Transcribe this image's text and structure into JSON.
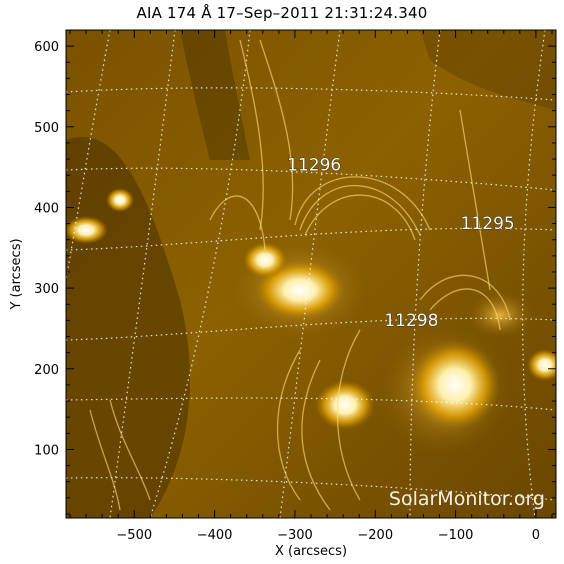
{
  "title": "AIA 174 Å 17–Sep–2011 21:31:24.340",
  "xlabel": "X (arcsecs)",
  "ylabel": "Y (arcsecs)",
  "watermark": "SolarMonitor.org",
  "colors": {
    "background": "#ffffff",
    "image_dark": "#2a1a00",
    "image_mid": "#a87400",
    "image_bright": "#fff2c0",
    "grid": "#ffffff"
  },
  "axes": {
    "xlim": [
      -585,
      25
    ],
    "ylim": [
      15,
      620
    ],
    "xticks": [
      -500,
      -400,
      -300,
      -200,
      -100,
      0
    ],
    "yticks": [
      100,
      200,
      300,
      400,
      500,
      600
    ]
  },
  "active_regions": [
    {
      "label": "11296",
      "x": -276,
      "y": 446
    },
    {
      "label": "11295",
      "x": -60,
      "y": 373
    },
    {
      "label": "11298",
      "x": -155,
      "y": 253
    }
  ]
}
